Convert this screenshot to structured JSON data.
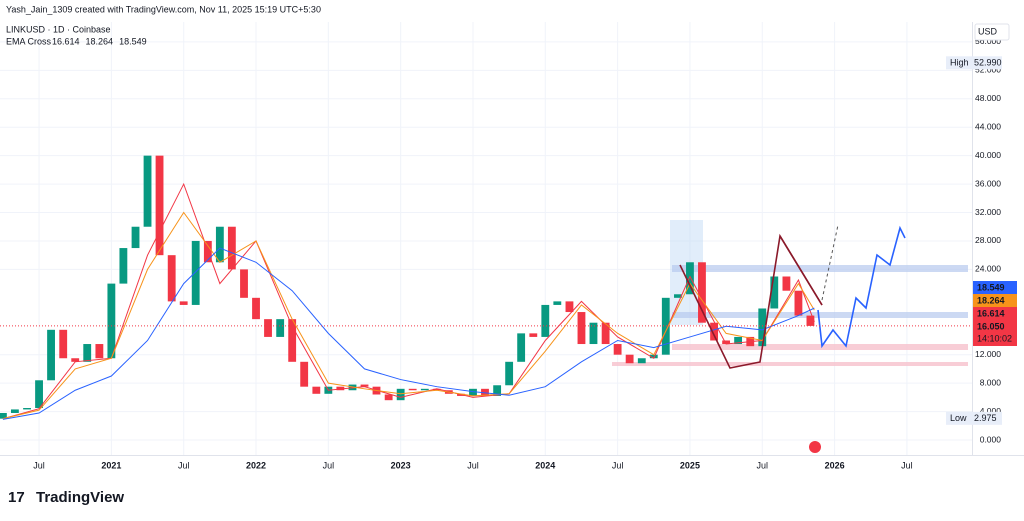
{
  "header": {
    "author_line": "Yash_Jain_1309 created with TradingView.com, Nov 11, 2025 15:19 UTC+5:30",
    "symbol": "LINKUSD · 1D · Coinbase",
    "currency": "USD"
  },
  "chart_data": {
    "type": "candlestick",
    "x": [
      2020.25,
      2020.333,
      2020.417,
      2020.5,
      2020.583,
      2020.667,
      2020.75,
      2020.833,
      2020.917,
      2021,
      2021.083,
      2021.167,
      2021.25,
      2021.333,
      2021.417,
      2021.5,
      2021.583,
      2021.667,
      2021.75,
      2021.833,
      2021.917,
      2022,
      2022.083,
      2022.167,
      2022.25,
      2022.333,
      2022.417,
      2022.5,
      2022.583,
      2022.667,
      2022.75,
      2022.833,
      2022.917,
      2023,
      2023.083,
      2023.167,
      2023.25,
      2023.333,
      2023.417,
      2023.5,
      2023.583,
      2023.667,
      2023.75,
      2023.833,
      2023.917,
      2024,
      2024.083,
      2024.167,
      2024.25,
      2024.333,
      2024.417,
      2024.5,
      2024.583,
      2024.667,
      2024.75,
      2024.833,
      2024.917,
      2025,
      2025.083,
      2025.167,
      2025.25,
      2025.333,
      2025.417,
      2025.5,
      2025.583,
      2025.667,
      2025.75,
      2025.833
    ],
    "open": [
      3.0,
      3.8,
      4.3,
      4.5,
      8.4,
      15.5,
      11.5,
      11.0,
      13.5,
      11.5,
      22.0,
      27.0,
      30.0,
      40.0,
      26.0,
      19.5,
      19.0,
      28.0,
      25.0,
      30.0,
      24.0,
      20.0,
      17.0,
      14.5,
      17.0,
      11.0,
      7.5,
      6.5,
      7.5,
      7.0,
      7.8,
      7.5,
      6.4,
      5.6,
      7.2,
      7.0,
      7.2,
      7.0,
      6.5,
      6.2,
      7.2,
      6.2,
      7.7,
      11.0,
      15.0,
      14.5,
      19.0,
      19.5,
      18.0,
      13.5,
      16.5,
      13.5,
      12.0,
      10.8,
      11.5,
      12.0,
      20.0,
      20.5,
      25.0,
      16.5,
      14.0,
      13.5,
      14.5,
      13.2,
      18.5,
      23.0,
      21.0,
      17.5
    ],
    "high": {
      "label": "High",
      "value": 52.99,
      "value_label": "52.990"
    },
    "low": {
      "label": "Low",
      "value": 2.975
    },
    "close": [
      3.8,
      4.3,
      4.5,
      8.4,
      15.5,
      11.5,
      11.0,
      13.5,
      11.5,
      22.0,
      27.0,
      30.0,
      40.0,
      26.0,
      19.5,
      19.0,
      28.0,
      25.0,
      30.0,
      24.0,
      20.0,
      17.0,
      14.5,
      17.0,
      11.0,
      7.5,
      6.5,
      7.5,
      7.0,
      7.8,
      7.5,
      6.4,
      5.6,
      7.2,
      7.0,
      7.2,
      7.0,
      6.5,
      6.2,
      7.2,
      6.2,
      7.7,
      11.0,
      15.0,
      14.5,
      19.0,
      19.5,
      18.0,
      13.5,
      16.5,
      13.5,
      12.0,
      10.8,
      11.5,
      12.0,
      20.0,
      20.5,
      25.0,
      16.5,
      14.0,
      13.5,
      14.5,
      13.2,
      18.5,
      23.0,
      21.0,
      17.5,
      16.05
    ],
    "up_color": "#089981",
    "down_color": "#f23645",
    "ylim": [
      0,
      58.8
    ],
    "yticks": [
      {
        "value": 0,
        "label": "0.000"
      },
      {
        "value": 4,
        "label": "4.000"
      },
      {
        "value": 8,
        "label": "8.000"
      },
      {
        "value": 12,
        "label": "12.000"
      },
      {
        "value": 24,
        "label": "24.000"
      },
      {
        "value": 28,
        "label": "28.000"
      },
      {
        "value": 32,
        "label": "32.000"
      },
      {
        "value": 36,
        "label": "36.000"
      },
      {
        "value": 40,
        "label": "40.000"
      },
      {
        "value": 44,
        "label": "44.000"
      },
      {
        "value": 48,
        "label": "48.000"
      },
      {
        "value": 52,
        "label": "52.000"
      },
      {
        "value": 56,
        "label": "56.000"
      }
    ],
    "xlim": [
      2020.23,
      2026.95
    ],
    "xticks": [
      {
        "value": 2020.5,
        "label": "Jul"
      },
      2021,
      {
        "value": 2021.5,
        "label": "Jul"
      },
      2022,
      {
        "value": 2022.5,
        "label": "Jul"
      },
      2023,
      {
        "value": 2023.5,
        "label": "Jul"
      },
      2024,
      {
        "value": 2024.5,
        "label": "Jul"
      },
      2025,
      {
        "value": 2025.5,
        "label": "Jul"
      },
      2026,
      {
        "value": 2026.5,
        "label": "Jul"
      }
    ],
    "grid": true,
    "ema": {
      "label": "EMA Cross",
      "x": [
        2020.25,
        2020.5,
        2020.75,
        2021,
        2021.25,
        2021.5,
        2021.75,
        2022,
        2022.25,
        2022.5,
        2022.75,
        2023,
        2023.25,
        2023.5,
        2023.75,
        2024,
        2024.25,
        2024.5,
        2024.75,
        2025,
        2025.25,
        2025.5,
        2025.75,
        2025.86
      ],
      "lines": [
        {
          "color": "#f23645",
          "last": 16.614,
          "values": [
            3.0,
            4.4,
            11.0,
            11.5,
            26.0,
            36.0,
            22.0,
            28.0,
            16.0,
            7.0,
            7.5,
            6.0,
            7.2,
            6.0,
            6.5,
            14.0,
            19.5,
            14.5,
            11.5,
            23.0,
            13.5,
            14.0,
            22.5,
            16.614
          ]
        },
        {
          "color": "#f7931a",
          "last": 18.264,
          "values": [
            3.0,
            4.2,
            10.0,
            11.5,
            24.0,
            32.0,
            25.0,
            28.0,
            17.0,
            8.0,
            7.2,
            6.5,
            7.0,
            6.2,
            6.5,
            12.5,
            19.0,
            15.0,
            12.0,
            22.0,
            15.0,
            14.0,
            22.0,
            18.264
          ]
        },
        {
          "color": "#2962ff",
          "last": 18.549,
          "values": [
            2.9,
            3.8,
            7.0,
            9.0,
            14.0,
            22.0,
            27.0,
            25.0,
            21.0,
            15.0,
            10.0,
            8.5,
            7.5,
            6.8,
            6.3,
            7.5,
            11.0,
            14.0,
            13.0,
            14.5,
            16.0,
            15.5,
            17.5,
            18.549
          ]
        }
      ]
    },
    "last_price": {
      "value": 16.05,
      "label": "16.050"
    },
    "countdown": "14:10:02"
  },
  "footer": {
    "logo": "TradingView"
  }
}
